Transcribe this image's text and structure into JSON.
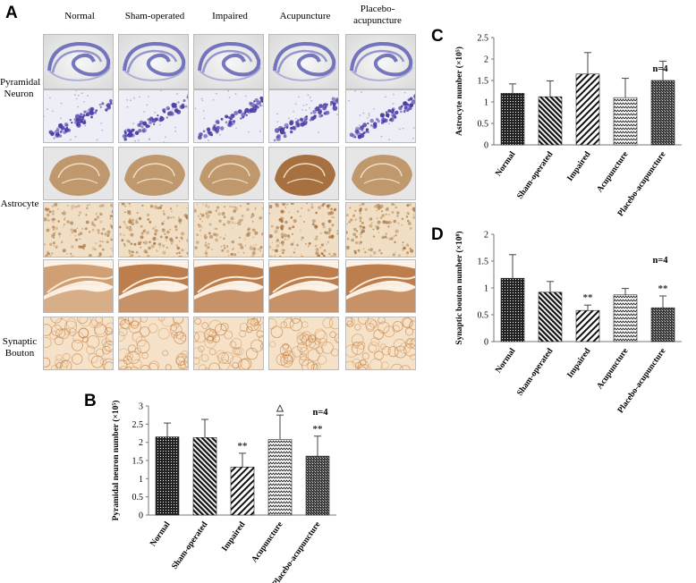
{
  "figure": {
    "panel_a": {
      "letter": "A",
      "columns": [
        "Normal",
        "Sham-operated",
        "Impaired",
        "Acupuncture",
        "Placebo-acupuncture"
      ],
      "rows": [
        {
          "label": "Pyramidal Neuron",
          "kind": "nissl"
        },
        {
          "label": "Astrocyte",
          "kind": "gfap"
        },
        {
          "label": "Synaptic Bouton",
          "kind": "syn"
        }
      ]
    }
  },
  "chart_data": [
    {
      "panel": "B",
      "type": "bar",
      "title": "",
      "xlabel": "",
      "ylabel": "Pyramidal neuron number (×10⁵)",
      "categories": [
        "Normal",
        "Sham-operated",
        "Impaired",
        "Acupuncture",
        "Placebo-acupuncture"
      ],
      "values": [
        2.15,
        2.13,
        1.32,
        2.08,
        1.62
      ],
      "errors": [
        0.38,
        0.5,
        0.38,
        0.67,
        0.55
      ],
      "significance": [
        "",
        "",
        "**",
        "△",
        "**"
      ],
      "annotation": "n=4",
      "ylim": [
        0,
        3
      ],
      "yticks": [
        "0",
        "0.5",
        "1",
        "1.5",
        "2",
        "2.5",
        "3"
      ],
      "grid": false,
      "legend": "none"
    },
    {
      "panel": "C",
      "type": "bar",
      "title": "",
      "xlabel": "",
      "ylabel": "Astrocyte number (×10⁵)",
      "categories": [
        "Normal",
        "Sham-operated",
        "Impaired",
        "Acupuncture",
        "Placebo-acupuncture"
      ],
      "values": [
        1.2,
        1.12,
        1.65,
        1.1,
        1.5
      ],
      "errors": [
        0.22,
        0.37,
        0.5,
        0.45,
        0.45
      ],
      "significance": [
        "",
        "",
        "",
        "",
        ""
      ],
      "annotation": "n=4",
      "ylim": [
        0,
        2.5
      ],
      "yticks": [
        "0",
        "0.5",
        "1",
        "1.5",
        "2",
        "2.5"
      ],
      "grid": false,
      "legend": "none"
    },
    {
      "panel": "D",
      "type": "bar",
      "title": "",
      "xlabel": "",
      "ylabel": "Synaptic bouton number (×10⁸)",
      "categories": [
        "Normal",
        "Sham-operated",
        "Impaired",
        "Acupuncture",
        "Placebo-acupuncture"
      ],
      "values": [
        1.18,
        0.92,
        0.58,
        0.87,
        0.63
      ],
      "errors": [
        0.44,
        0.2,
        0.1,
        0.12,
        0.22
      ],
      "significance": [
        "",
        "",
        "**",
        "",
        "**"
      ],
      "annotation": "n=4",
      "ylim": [
        0,
        2
      ],
      "yticks": [
        "0",
        "0.5",
        "1",
        "1.5",
        "2"
      ],
      "grid": false,
      "legend": "none"
    }
  ]
}
